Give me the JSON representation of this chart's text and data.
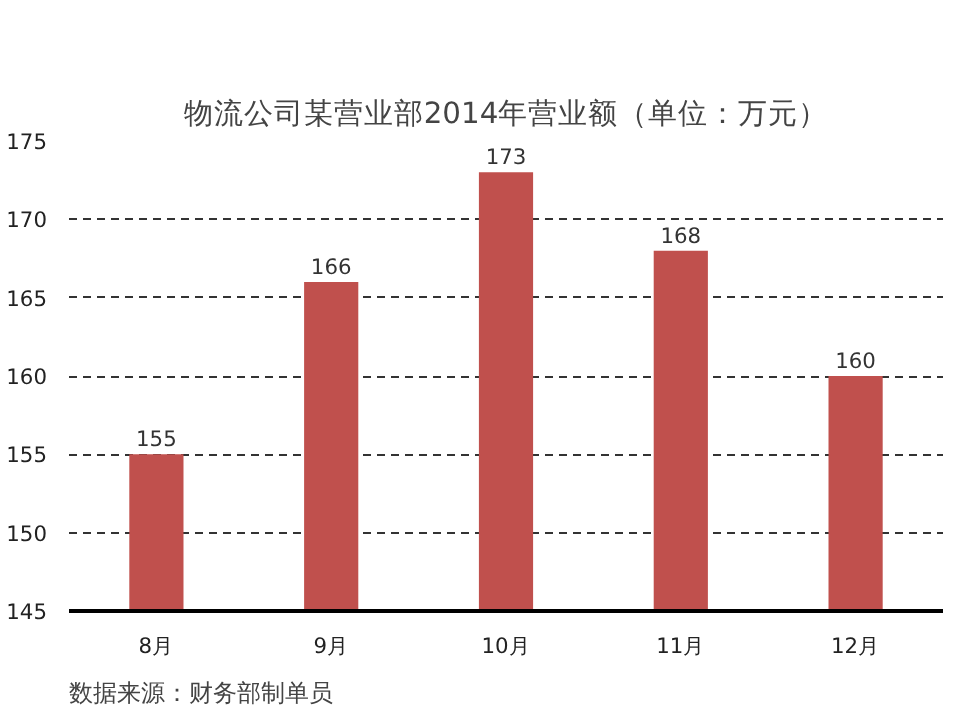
{
  "chart_data": {
    "type": "bar",
    "title": "物流公司某营业部2014年营业额（单位：万元）",
    "categories": [
      "8月",
      "9月",
      "10月",
      "11月",
      "12月"
    ],
    "values": [
      155,
      166,
      173,
      168,
      160
    ],
    "color": "#c0504d",
    "ylim": [
      145,
      175
    ],
    "yticks": [
      145,
      150,
      155,
      160,
      165,
      170,
      175
    ],
    "grid": "y",
    "data_labels": true,
    "annotations": [
      "数据来源：财务部制单员"
    ]
  }
}
